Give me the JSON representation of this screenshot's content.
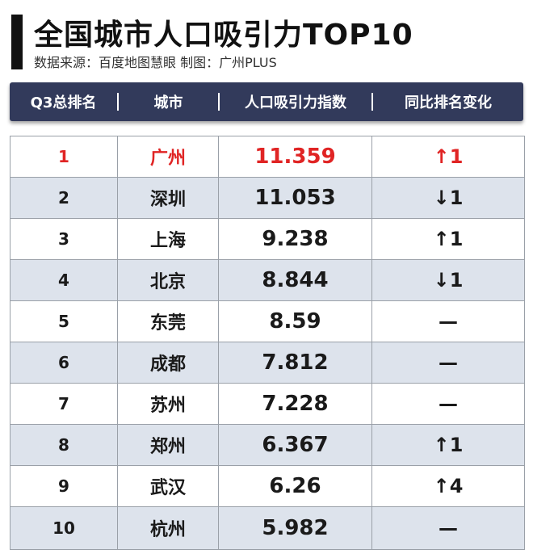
{
  "title": "全国城市人口吸引力TOP10",
  "subtitle": "数据来源：百度地图慧眼   制图：广州PLUS",
  "columns": [
    "Q3总排名",
    "城市",
    "人口吸引力指数",
    "同比排名变化"
  ],
  "colors": {
    "header_bg": "#323a5b",
    "highlight": "#e02424",
    "alt_row": "#dde3ec"
  },
  "rows": [
    {
      "rank": "1",
      "city": "广州",
      "index": "11.359",
      "change": "↑1"
    },
    {
      "rank": "2",
      "city": "深圳",
      "index": "11.053",
      "change": "↓1"
    },
    {
      "rank": "3",
      "city": "上海",
      "index": "9.238",
      "change": "↑1"
    },
    {
      "rank": "4",
      "city": "北京",
      "index": "8.844",
      "change": "↓1"
    },
    {
      "rank": "5",
      "city": "东莞",
      "index": "8.59",
      "change": "—"
    },
    {
      "rank": "6",
      "city": "成都",
      "index": "7.812",
      "change": "—"
    },
    {
      "rank": "7",
      "city": "苏州",
      "index": "7.228",
      "change": "—"
    },
    {
      "rank": "8",
      "city": "郑州",
      "index": "6.367",
      "change": "↑1"
    },
    {
      "rank": "9",
      "city": "武汉",
      "index": "6.26",
      "change": "↑4"
    },
    {
      "rank": "10",
      "city": "杭州",
      "index": "5.982",
      "change": "—"
    }
  ],
  "chart_data": {
    "type": "table",
    "title": "全国城市人口吸引力TOP10",
    "columns": [
      "Q3总排名",
      "城市",
      "人口吸引力指数",
      "同比排名变化"
    ],
    "rows": [
      [
        "1",
        "广州",
        11.359,
        "↑1"
      ],
      [
        "2",
        "深圳",
        11.053,
        "↓1"
      ],
      [
        "3",
        "上海",
        9.238,
        "↑1"
      ],
      [
        "4",
        "北京",
        8.844,
        "↓1"
      ],
      [
        "5",
        "东莞",
        8.59,
        "—"
      ],
      [
        "6",
        "成都",
        7.812,
        "—"
      ],
      [
        "7",
        "苏州",
        7.228,
        "—"
      ],
      [
        "8",
        "郑州",
        6.367,
        "↑1"
      ],
      [
        "9",
        "武汉",
        6.26,
        "↑4"
      ],
      [
        "10",
        "杭州",
        5.982,
        "—"
      ]
    ]
  }
}
